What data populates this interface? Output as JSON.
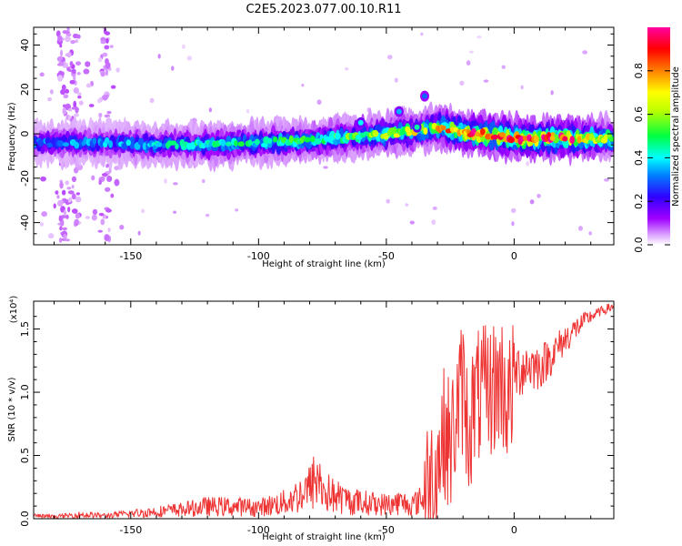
{
  "title": "C2E5.2023.077.00.10.R11",
  "chart_data": [
    {
      "type": "heatmap",
      "xlabel": "Height of straight line (km)",
      "ylabel": "Frequency (Hz)",
      "xlim": [
        -188,
        39
      ],
      "ylim": [
        -50,
        48
      ],
      "xticks": [
        -150,
        -100,
        -50,
        0
      ],
      "yticks": [
        -40,
        -20,
        0,
        20,
        40
      ],
      "colorbar": {
        "label": "Normalized spectral amplitude",
        "range": [
          0.0,
          1.0
        ],
        "ticks": [
          0.0,
          0.2,
          0.4,
          0.6,
          0.8
        ],
        "colors": [
          "#ffffff",
          "#e0b0ff",
          "#a000ff",
          "#3000ff",
          "#0080ff",
          "#00ffff",
          "#00ff40",
          "#c0ff00",
          "#ffff00",
          "#ff8000",
          "#ff0000",
          "#ff00a0"
        ]
      },
      "ridge": {
        "description_x": [
          -188,
          -160,
          -140,
          -120,
          -100,
          -80,
          -60,
          -40,
          -30,
          -22,
          -15,
          -5,
          0,
          20,
          39
        ],
        "center_hz": [
          -4,
          -4,
          -5,
          -5,
          -4,
          -3,
          -1,
          1,
          3,
          1,
          0,
          -1,
          -2,
          -2,
          -2
        ],
        "peak_amplitude": [
          0.3,
          0.35,
          0.4,
          0.45,
          0.45,
          0.5,
          0.55,
          0.65,
          0.7,
          0.85,
          0.95,
          1.0,
          1.0,
          0.95,
          0.55
        ]
      }
    },
    {
      "type": "line",
      "xlabel": "Height of straight line (km)",
      "ylabel": "SNR (10 * v/v)",
      "yscale_note": "(x10⁴)",
      "xlim": [
        -188,
        39
      ],
      "ylim": [
        0.0,
        1.72
      ],
      "xticks": [
        -150,
        -100,
        -50,
        0
      ],
      "yticks": [
        0.0,
        0.5,
        1.0,
        1.5
      ],
      "color": "#ee3333",
      "series": [
        {
          "x": [
            -188,
            -180,
            -170,
            -160,
            -150,
            -140,
            -130,
            -120,
            -110,
            -100,
            -90,
            -85,
            -80,
            -77,
            -75,
            -70,
            -65,
            -60,
            -55,
            -50,
            -45,
            -40,
            -35,
            -30,
            -27,
            -25,
            -22,
            -20,
            -18,
            -15,
            -10,
            -5,
            0,
            -2,
            5,
            10,
            15,
            20,
            25,
            30,
            35,
            39
          ],
          "y": [
            0.03,
            0.02,
            0.04,
            0.03,
            0.05,
            0.07,
            0.09,
            0.12,
            0.12,
            0.11,
            0.16,
            0.22,
            0.3,
            0.42,
            0.28,
            0.22,
            0.18,
            0.16,
            0.15,
            0.14,
            0.16,
            0.14,
            0.2,
            0.45,
            0.7,
            0.55,
            0.9,
            1.05,
            0.7,
            0.95,
            1.0,
            1.1,
            1.15,
            0.9,
            1.22,
            1.2,
            1.3,
            1.42,
            1.52,
            1.6,
            1.65,
            1.68
          ]
        }
      ]
    }
  ]
}
